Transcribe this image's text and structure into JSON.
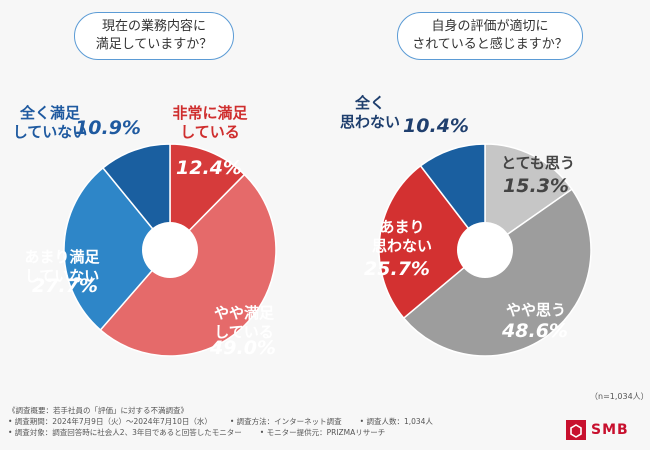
{
  "chart_data": [
    {
      "type": "pie",
      "title": [
        "現在の業務内容に",
        "満足していますか？"
      ],
      "slices": [
        {
          "label": [
            "非常に満足",
            "している"
          ],
          "value": 12.4,
          "display": "12.4%",
          "color": "#d63b3b",
          "label_color": "#cf2e2e",
          "pct_color": "#ffffff"
        },
        {
          "label": [
            "やや満足",
            "している"
          ],
          "value": 49.0,
          "display": "49.0%",
          "color": "#e56a6a",
          "label_color": "#ffffff",
          "pct_color": "#ffffff"
        },
        {
          "label": [
            "あまり満足",
            "していない"
          ],
          "value": 27.7,
          "display": "27.7%",
          "color": "#2e86c8",
          "label_color": "#ffffff",
          "pct_color": "#ffffff"
        },
        {
          "label": [
            "全く満足",
            "していない"
          ],
          "value": 10.9,
          "display": "10.9%",
          "color": "#1a5fa0",
          "label_color": "#1f5aa0",
          "pct_color": "#1f5aa0"
        }
      ]
    },
    {
      "type": "pie",
      "title": [
        "自身の評価が適切に",
        "されていると感じますか？"
      ],
      "slices": [
        {
          "label": [
            "とても思う"
          ],
          "value": 15.3,
          "display": "15.3%",
          "color": "#c6c6c6",
          "label_color": "#444444",
          "pct_color": "#444444"
        },
        {
          "label": [
            "やや思う"
          ],
          "value": 48.6,
          "display": "48.6%",
          "color": "#9d9d9d",
          "label_color": "#ffffff",
          "pct_color": "#ffffff"
        },
        {
          "label": [
            "あまり",
            "思わない"
          ],
          "value": 25.7,
          "display": "25.7%",
          "color": "#d33131",
          "label_color": "#ffffff",
          "pct_color": "#ffffff"
        },
        {
          "label": [
            "全く",
            "思わない"
          ],
          "value": 10.4,
          "display": "10.4%",
          "color": "#1a5fa0",
          "label_color": "#1f3f6e",
          "pct_color": "#1f3f6e"
        }
      ]
    }
  ],
  "footer": {
    "sample_size": "（n=1,034人）",
    "note_header": "《調査概要：若手社員の「評価」に対する不満調査》",
    "note_row1": [
      "• 調査期間：2024年7月9日（火）〜2024年7月10日（水）",
      "• 調査方法：インターネット調査",
      "• 調査人数：1,034人"
    ],
    "note_row2": [
      "• 調査対象：調査回答時に社会人2、3年目であると回答したモニター",
      "• モニター提供元：PRIZMAリサーチ"
    ],
    "logo_text": "SMB"
  },
  "colors": {
    "accent_red": "#c8102e",
    "pill_border": "#5b9bd5"
  }
}
